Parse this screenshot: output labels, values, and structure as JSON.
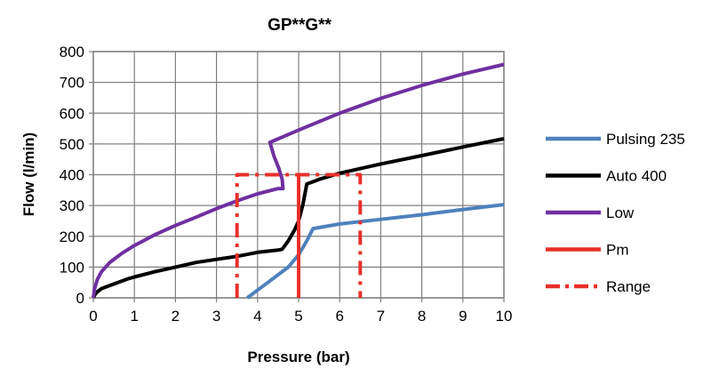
{
  "chart_data": {
    "type": "line",
    "title": "GP**G**",
    "xlabel": "Pressure (bar)",
    "ylabel": "Flow (l/min)",
    "xlim": [
      0,
      10
    ],
    "ylim": [
      0,
      800
    ],
    "xticks": [
      "0",
      "1",
      "2",
      "3",
      "4",
      "5",
      "6",
      "7",
      "8",
      "9",
      "10"
    ],
    "yticks": [
      "0",
      "100",
      "200",
      "300",
      "400",
      "500",
      "600",
      "700",
      "800"
    ],
    "grid": true,
    "legend_position": "right",
    "series": [
      {
        "name": "Pulsing 235",
        "color": "#4f81bd",
        "style": "solid",
        "x": [
          3.75,
          4.0,
          4.25,
          4.5,
          4.75,
          5.0,
          5.2,
          5.35,
          6.0,
          7.0,
          8.0,
          9.0,
          10.0
        ],
        "y": [
          0,
          25,
          50,
          75,
          100,
          140,
          185,
          225,
          240,
          255,
          270,
          287,
          303
        ]
      },
      {
        "name": "Auto 400",
        "color": "#000000",
        "style": "solid",
        "x": [
          0,
          0.05,
          0.1,
          0.2,
          0.4,
          0.6,
          0.8,
          1.0,
          1.5,
          2.0,
          2.5,
          3.0,
          3.5,
          4.0,
          4.5,
          4.6,
          4.75,
          4.9,
          5.0,
          5.1,
          5.2,
          5.3,
          5.5,
          6.0,
          7.0,
          8.0,
          9.0,
          10.0
        ],
        "y": [
          0,
          13,
          20,
          30,
          40,
          50,
          60,
          68,
          85,
          100,
          115,
          125,
          135,
          148,
          155,
          158,
          185,
          220,
          250,
          300,
          370,
          375,
          385,
          405,
          435,
          462,
          490,
          517
        ]
      },
      {
        "name": "Low",
        "color": "#7030a0",
        "style": "solid",
        "x": [
          0,
          0.03,
          0.1,
          0.2,
          0.4,
          0.7,
          1.0,
          1.5,
          2.0,
          2.5,
          3.0,
          3.5,
          4.0,
          4.5,
          4.62,
          4.6,
          4.52,
          4.4,
          4.3,
          5.0,
          6.0,
          7.0,
          8.0,
          9.0,
          10.0
        ],
        "y": [
          0,
          30,
          60,
          85,
          115,
          145,
          170,
          205,
          235,
          262,
          290,
          315,
          338,
          355,
          355,
          385,
          420,
          460,
          505,
          545,
          600,
          648,
          690,
          727,
          758
        ]
      },
      {
        "name": "Pm",
        "color": "#e8302a",
        "style": "solid",
        "x": [
          5.0,
          5.0,
          5.0,
          5.0
        ],
        "y": [
          0,
          0,
          0,
          400
        ]
      },
      {
        "name": "Range",
        "color": "#e8302a",
        "style": "dashed",
        "x": [
          3.5,
          3.5,
          6.5,
          6.5
        ],
        "y": [
          0,
          400,
          400,
          0
        ]
      }
    ]
  }
}
